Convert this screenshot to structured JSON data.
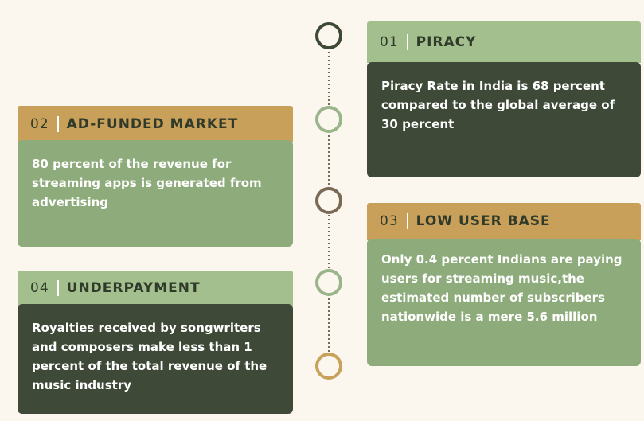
{
  "items": [
    {
      "number": "01",
      "title": "PIRACY",
      "text": "Piracy Rate in India is 68 percent compared to the global average of 30 percent"
    },
    {
      "number": "02",
      "title": "AD-FUNDED MARKET",
      "text": "80 percent of the revenue for streaming apps is generated from advertising"
    },
    {
      "number": "03",
      "title": "LOW USER BASE",
      "text": "Only 0.4 percent Indians are paying users for streaming music,the estimated number of subscribers nationwide is a mere 5.6 million"
    },
    {
      "number": "04",
      "title": "UNDERPAYMENT",
      "text": "Royalties received by songwriters and composers make less than 1 percent of the total revenue of the music industry"
    }
  ]
}
